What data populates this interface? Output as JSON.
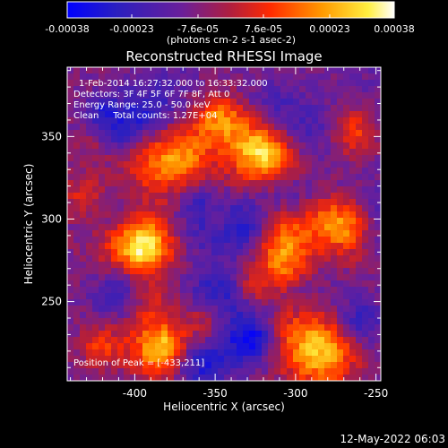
{
  "chart_data": {
    "type": "heatmap",
    "title": "Reconstructed RHESSI Image",
    "xlabel": "Heliocentric X (arcsec)",
    "ylabel": "Heliocentric Y (arcsec)",
    "xlim": [
      -442,
      -247
    ],
    "ylim": [
      202,
      392
    ],
    "xticks": [
      -400,
      -350,
      -300,
      -250
    ],
    "yticks": [
      250,
      300,
      350
    ],
    "colorbar": {
      "tick_values": [
        -0.00038,
        -0.00023,
        -7.6e-05,
        7.6e-05,
        0.00023,
        0.00038
      ],
      "tick_labels": [
        "-0.00038",
        "-0.00023",
        "-7.6e-05",
        "7.6e-05",
        "0.00023",
        "0.00038"
      ],
      "range": [
        -0.00038,
        0.00038
      ],
      "label": "(photons cm-2 s-1 asec-2)",
      "colors": [
        "#0000ff",
        "#4a1faa",
        "#7a1f8a",
        "#cc1e1e",
        "#ff5a00",
        "#ffb000",
        "#ffff80",
        "#ffffff"
      ]
    },
    "peak": [
      -433,
      211
    ],
    "annotations": [
      "1-Feb-2014 16:27:32.000 to 16:33:32.000",
      "Detectors: 3F 4F 5F 6F 7F 8F, Att 0",
      "Energy Range: 25.0 - 50.0 keV",
      "Clean     Total counts: 1.27E+04",
      "Position of Peak = [-433,211]"
    ],
    "grid": false
  },
  "footer": {
    "timestamp": "12-May-2022 06:03"
  }
}
